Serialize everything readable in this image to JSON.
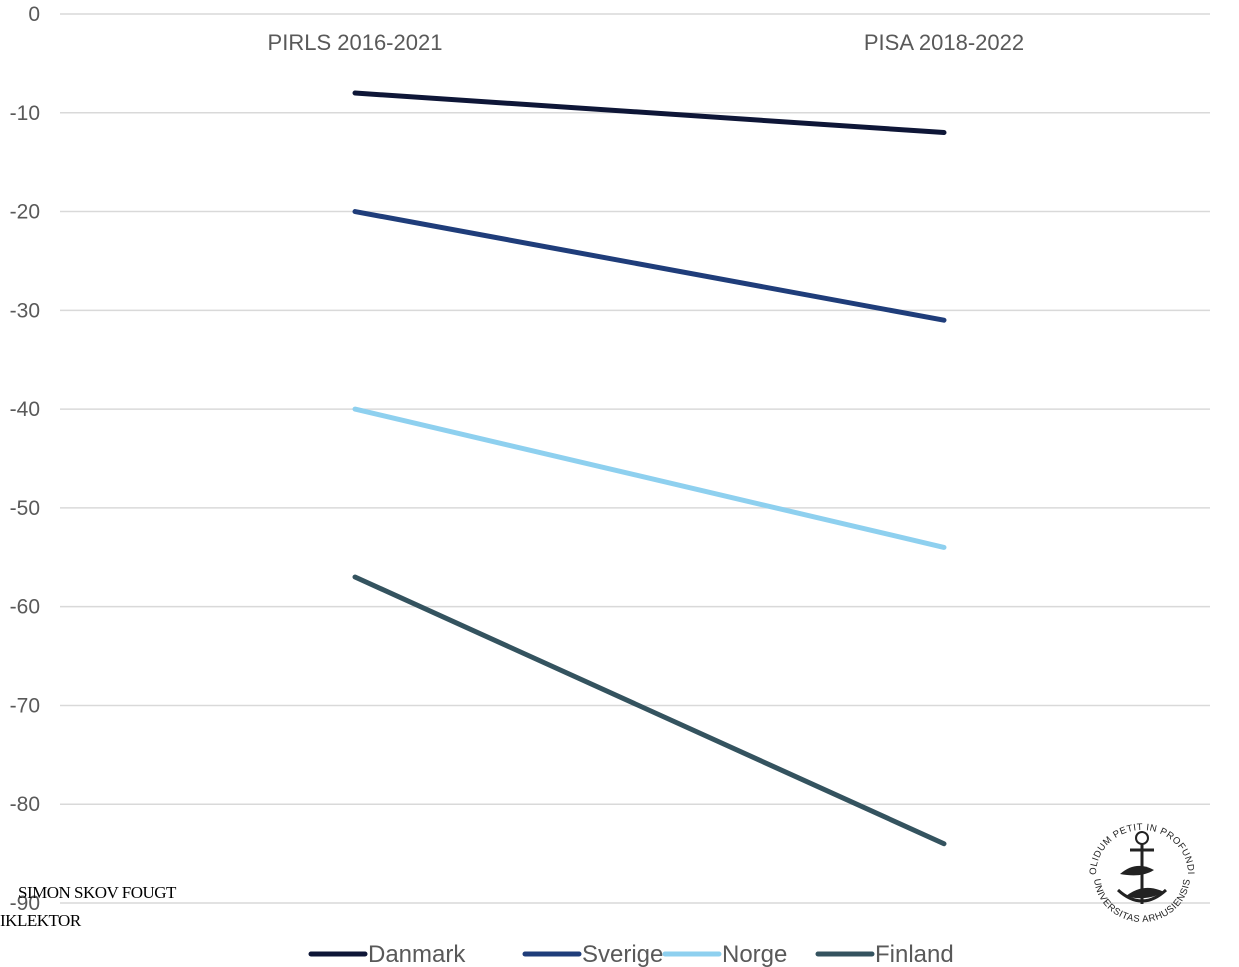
{
  "chart_data": {
    "type": "line",
    "categories": [
      "PIRLS 2016-2021",
      "PISA 2018-2022"
    ],
    "series": [
      {
        "name": "Danmark",
        "values": [
          -8,
          -12
        ],
        "color": "#0e1637"
      },
      {
        "name": "Sverige",
        "values": [
          -20,
          -31
        ],
        "color": "#1f3d7a"
      },
      {
        "name": "Norge",
        "values": [
          -40,
          -54
        ],
        "color": "#8ed0ef"
      },
      {
        "name": "Finland",
        "values": [
          -57,
          -84
        ],
        "color": "#34535f"
      }
    ],
    "ylim": [
      -90,
      0
    ],
    "yticks": [
      0,
      -10,
      -20,
      -30,
      -40,
      -50,
      -60,
      -70,
      -80,
      -90
    ],
    "x_axis_position": "top",
    "grid": true,
    "legend": "bottom"
  },
  "footer": {
    "name": "SIMON SKOV FOUGT",
    "role": "IKLEKTOR"
  },
  "logo": {
    "icon": "aarhus-university-seal-icon",
    "text": "SOLIDUM PETIT IN PROFUNDIS · UNIVERSITAS ARHUSIENSIS"
  }
}
